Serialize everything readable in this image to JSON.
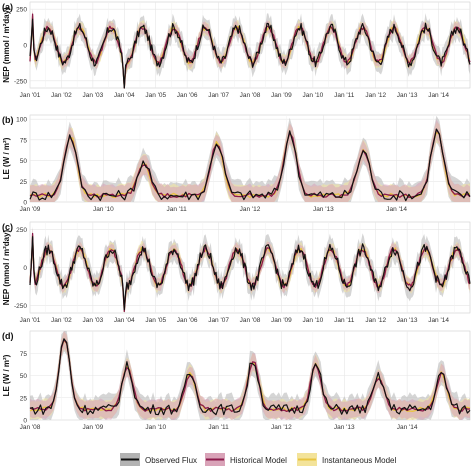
{
  "legend": {
    "items": [
      {
        "label": "Observed Flux",
        "color": "#111111"
      },
      {
        "label": "Historical Model",
        "color": "#8b1a4a"
      },
      {
        "label": "Instantaneous Model",
        "color": "#e8c440"
      }
    ]
  },
  "colors": {
    "background": "#ffffff",
    "grid": "#e6e6e6",
    "band_observed": "#b3b3b3",
    "band_historical": "#d9a3b8",
    "band_instantaneous": "#f3e39a"
  },
  "chart_data": [
    {
      "panel_label": "(a)",
      "type": "line",
      "ylabel": "NEP (mmol / m²day)",
      "ylim": [
        -300,
        300
      ],
      "yticks": [
        -250,
        0,
        250
      ],
      "ytick_labels": [
        "-250",
        "0",
        "250"
      ],
      "xlim": [
        2001,
        2015
      ],
      "xticks": [
        2001,
        2002,
        2003,
        2004,
        2005,
        2006,
        2007,
        2008,
        2009,
        2010,
        2011,
        2012,
        2013,
        2014
      ],
      "xtick_labels": [
        "Jan '01",
        "Jan '02",
        "Jan '03",
        "Jan '04",
        "Jan '05",
        "Jan '06",
        "Jan '07",
        "Jan '08",
        "Jan '09",
        "Jan '10",
        "Jan '11",
        "Jan '12",
        "Jan '13",
        "Jan '14"
      ],
      "grid": true,
      "seasonal": {
        "mean": 0,
        "amp": 120,
        "trough": 0.08
      },
      "spikes": [
        [
          2001.08,
          230
        ],
        [
          2004.0,
          -300
        ]
      ],
      "series": [
        {
          "name": "Observed Flux",
          "color": "#111111",
          "band": 70
        },
        {
          "name": "Historical Model",
          "color": "#8b1a4a",
          "band": 40
        },
        {
          "name": "Instantaneous Model",
          "color": "#e8c440",
          "band": 45
        }
      ]
    },
    {
      "panel_label": "(b)",
      "type": "line",
      "ylabel": "LE (W / m²)",
      "ylim": [
        0,
        105
      ],
      "yticks": [
        0,
        25,
        50,
        75,
        100
      ],
      "ytick_labels": [
        "0",
        "25",
        "50",
        "75",
        "100"
      ],
      "xlim": [
        2009,
        2015
      ],
      "xticks": [
        2009,
        2010,
        2011,
        2012,
        2013,
        2014
      ],
      "xtick_labels": [
        "Jan '09",
        "Jan '10",
        "Jan '11",
        "Jan '12",
        "Jan '13",
        "Jan '14"
      ],
      "grid": true,
      "seasonal": {
        "mean": 35,
        "amp": 30,
        "peak": 0.6
      },
      "peaks": [
        {
          "year": 2009,
          "peak": 80
        },
        {
          "year": 2010,
          "peak": 47
        },
        {
          "year": 2011,
          "peak": 72
        },
        {
          "year": 2012,
          "peak": 82
        },
        {
          "year": 2013,
          "peak": 62
        },
        {
          "year": 2014,
          "peak": 86
        }
      ],
      "base": 8,
      "series": [
        {
          "name": "Observed Flux",
          "color": "#111111",
          "band": 16
        },
        {
          "name": "Historical Model",
          "color": "#8b1a4a",
          "band": 12
        },
        {
          "name": "Instantaneous Model",
          "color": "#e8c440",
          "band": 12
        }
      ]
    },
    {
      "panel_label": "(c)",
      "type": "line",
      "ylabel": "NEP (mmol / m²day)",
      "ylim": [
        -300,
        300
      ],
      "yticks": [
        -250,
        0,
        250
      ],
      "ytick_labels": [
        "-250",
        "0",
        "250"
      ],
      "xlim": [
        2001,
        2015
      ],
      "xticks": [
        2001,
        2002,
        2003,
        2004,
        2005,
        2006,
        2007,
        2008,
        2009,
        2010,
        2011,
        2012,
        2013,
        2014
      ],
      "xtick_labels": [
        "Jan '01",
        "Jan '02",
        "Jan '03",
        "Jan '04",
        "Jan '05",
        "Jan '06",
        "Jan '07",
        "Jan '08",
        "Jan '09",
        "Jan '10",
        "Jan '11",
        "Jan '12",
        "Jan '13",
        "Jan '14"
      ],
      "grid": true,
      "seasonal": {
        "mean": 0,
        "amp": 120,
        "trough": 0.08
      },
      "spikes": [
        [
          2001.08,
          230
        ],
        [
          2004.0,
          -300
        ]
      ],
      "series": [
        {
          "name": "Observed Flux",
          "color": "#111111",
          "band": 70
        },
        {
          "name": "Historical Model",
          "color": "#8b1a4a",
          "band": 40
        },
        {
          "name": "Instantaneous Model",
          "color": "#e8c440",
          "band": 45
        }
      ]
    },
    {
      "panel_label": "(d)",
      "type": "line",
      "ylabel": "LE (W / m²)",
      "ylim": [
        0,
        100
      ],
      "yticks": [
        0,
        25,
        50,
        75
      ],
      "ytick_labels": [
        "0",
        "25",
        "50",
        "75"
      ],
      "xlim": [
        2008,
        2015
      ],
      "xticks": [
        2008,
        2009,
        2010,
        2011,
        2012,
        2013,
        2014
      ],
      "xtick_labels": [
        "Jan '08",
        "Jan '09",
        "Jan '10",
        "Jan '11",
        "Jan '12",
        "Jan '13",
        "Jan '14"
      ],
      "grid": true,
      "peaks": [
        {
          "year": 2008,
          "peak": 92
        },
        {
          "year": 2009,
          "peak": 60
        },
        {
          "year": 2010,
          "peak": 52
        },
        {
          "year": 2011,
          "peak": 67
        },
        {
          "year": 2012,
          "peak": 62
        },
        {
          "year": 2013,
          "peak": 48
        },
        {
          "year": 2014,
          "peak": 52
        }
      ],
      "base": 12,
      "series": [
        {
          "name": "Observed Flux",
          "color": "#111111",
          "band": 14
        },
        {
          "name": "Historical Model",
          "color": "#8b1a4a",
          "band": 10
        },
        {
          "name": "Instantaneous Model",
          "color": "#e8c440",
          "band": 10
        }
      ]
    }
  ]
}
